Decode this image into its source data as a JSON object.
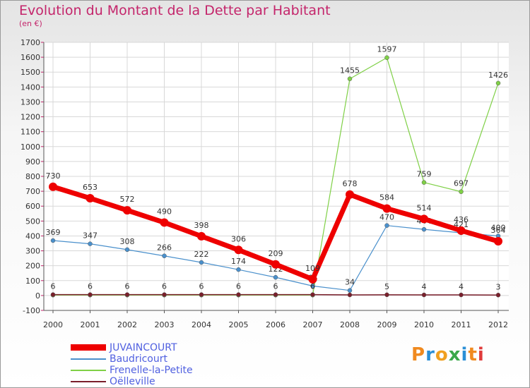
{
  "title": "Evolution du Montant de la Dette par Habitant",
  "subtitle": "(en €)",
  "watermark": {
    "text": "Proxiti",
    "letter_colors": [
      "#f08a1f",
      "#2b8fd6",
      "#f0a020",
      "#3aa84a",
      "#2b8fd6",
      "#f08a1f",
      "#e03b3b"
    ]
  },
  "chart_data": {
    "type": "line",
    "categories": [
      "2000",
      "2001",
      "2002",
      "2003",
      "2004",
      "2005",
      "2006",
      "2007",
      "2008",
      "2009",
      "2010",
      "2011",
      "2012"
    ],
    "ylim": [
      -100,
      1700
    ],
    "yticks": [
      -100,
      0,
      100,
      200,
      300,
      400,
      500,
      600,
      700,
      800,
      900,
      1000,
      1100,
      1200,
      1300,
      1400,
      1500,
      1600,
      1700
    ],
    "grid": true,
    "legend_position": "bottom-left",
    "series": [
      {
        "name": "Frenelle-la-Petite",
        "color": "#7fd046",
        "values": [
          3,
          3,
          3,
          3,
          3,
          3,
          3,
          3,
          1455,
          1597,
          759,
          697,
          1426
        ],
        "labels": [
          "",
          "",
          "",
          "",
          "",
          "",
          "",
          "",
          "1455",
          "1597",
          "759",
          "697",
          "1426"
        ]
      },
      {
        "name": "Baudricourt",
        "color": "#4a90cc",
        "values": [
          369,
          347,
          308,
          266,
          222,
          174,
          122,
          64,
          34,
          470,
          444,
          421,
          400
        ],
        "labels": [
          "369",
          "347",
          "308",
          "266",
          "222",
          "174",
          "122",
          "64",
          "34",
          "470",
          "444",
          "421",
          "400"
        ]
      },
      {
        "name": "Oëlleville",
        "color": "#7a1f2b",
        "values": [
          6,
          6,
          6,
          6,
          6,
          6,
          6,
          6,
          4,
          5,
          4,
          4,
          3
        ],
        "labels": [
          "6",
          "6",
          "6",
          "6",
          "6",
          "6",
          "6",
          "6",
          "",
          "5",
          "4",
          "4",
          "3"
        ]
      },
      {
        "name": "JUVAINCOURT",
        "color": "#ee0000",
        "values": [
          730,
          653,
          572,
          490,
          398,
          306,
          209,
          109,
          678,
          584,
          514,
          436,
          364
        ],
        "labels": [
          "730",
          "653",
          "572",
          "490",
          "398",
          "306",
          "209",
          "109",
          "678",
          "584",
          "514",
          "436",
          "364"
        ]
      }
    ],
    "legend": [
      "JUVAINCOURT",
      "Baudricourt",
      "Frenelle-la-Petite",
      "Oëlleville"
    ]
  }
}
